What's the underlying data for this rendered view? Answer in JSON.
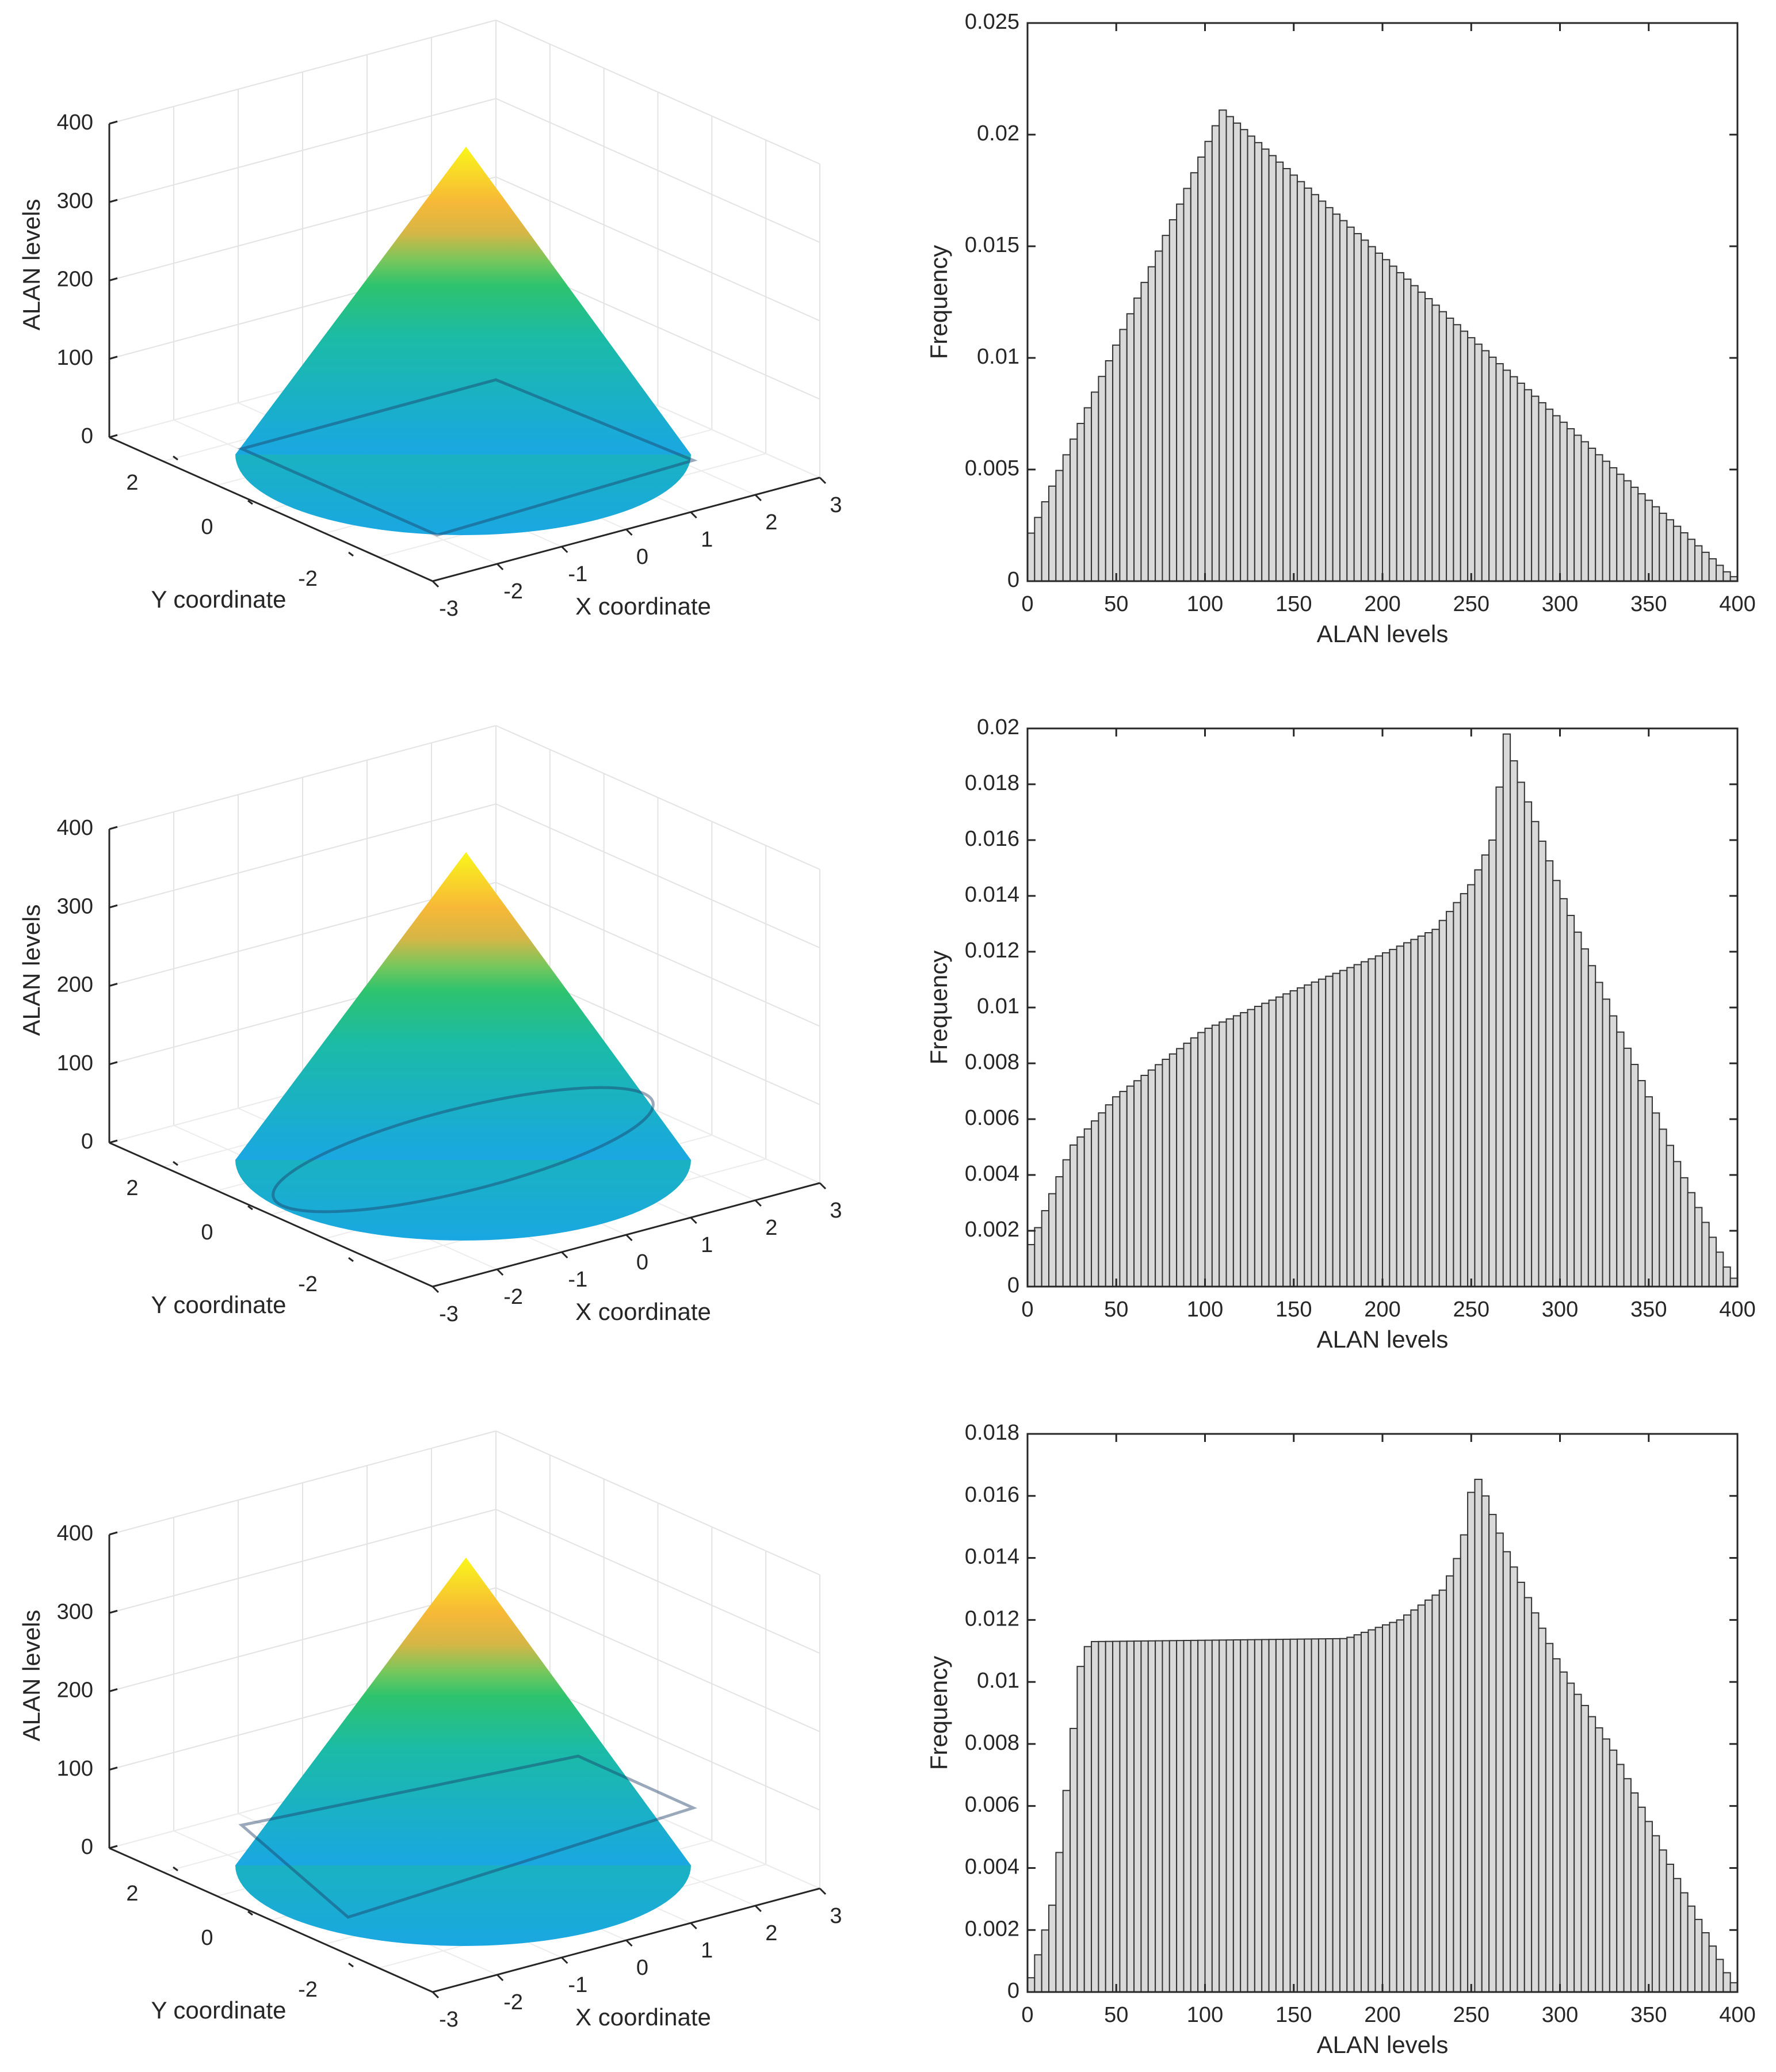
{
  "figure": {
    "rows": 3
  },
  "chart_data": [
    {
      "type": "surface3d",
      "title": "",
      "xlabel": "X coordinate",
      "ylabel": "Y coordinate",
      "zlabel": "ALAN levels",
      "xlim": [
        -3,
        3
      ],
      "ylim": [
        -3,
        3
      ],
      "zlim": [
        0,
        400
      ],
      "xticks": [
        "-3",
        "-2",
        "-1",
        "0",
        "1",
        "2",
        "3"
      ],
      "yticks": [
        "-2",
        "0",
        "2"
      ],
      "zticks": [
        "0",
        "100",
        "200",
        "300",
        "400"
      ],
      "surface": "cone",
      "apex": 400,
      "base_radius": 3,
      "colormap": "parula",
      "region": "square"
    },
    {
      "type": "bar",
      "title": "",
      "xlabel": "ALAN levels",
      "ylabel": "Frequency",
      "xlim": [
        0,
        400
      ],
      "ylim": [
        0,
        0.025
      ],
      "bin_width": 4,
      "xticks": [
        "0",
        "50",
        "100",
        "150",
        "200",
        "250",
        "300",
        "350",
        "400"
      ],
      "yticks": [
        "0",
        "0.005",
        "0.01",
        "0.015",
        "0.02",
        "0.025"
      ],
      "knots": [
        [
          0,
          0.0018
        ],
        [
          110,
          0.0211
        ],
        [
          397,
          0.0002
        ],
        [
          400,
          0.0002
        ]
      ]
    },
    {
      "type": "surface3d",
      "title": "",
      "xlabel": "X coordinate",
      "ylabel": "Y coordinate",
      "zlabel": "ALAN levels",
      "xlim": [
        -3,
        3
      ],
      "ylim": [
        -3,
        3
      ],
      "zlim": [
        0,
        400
      ],
      "xticks": [
        "-3",
        "-2",
        "-1",
        "0",
        "1",
        "2",
        "3"
      ],
      "yticks": [
        "-2",
        "0",
        "2"
      ],
      "zticks": [
        "0",
        "100",
        "200",
        "300",
        "400"
      ],
      "surface": "cone",
      "apex": 400,
      "base_radius": 3,
      "colormap": "parula",
      "region": "ellipse"
    },
    {
      "type": "bar",
      "title": "",
      "xlabel": "ALAN levels",
      "ylabel": "Frequency",
      "xlim": [
        0,
        400
      ],
      "ylim": [
        0,
        0.02
      ],
      "bin_width": 4,
      "xticks": [
        "0",
        "50",
        "100",
        "150",
        "200",
        "250",
        "300",
        "350",
        "400"
      ],
      "yticks": [
        "0",
        "0.002",
        "0.004",
        "0.006",
        "0.008",
        "0.01",
        "0.012",
        "0.014",
        "0.016",
        "0.018",
        "0.02"
      ],
      "knots": [
        [
          0,
          0.0012
        ],
        [
          25,
          0.005
        ],
        [
          50,
          0.0068
        ],
        [
          100,
          0.0092
        ],
        [
          150,
          0.0106
        ],
        [
          200,
          0.0119
        ],
        [
          230,
          0.0128
        ],
        [
          250,
          0.0144
        ],
        [
          262,
          0.016
        ],
        [
          270,
          0.0198
        ],
        [
          275,
          0.0186
        ],
        [
          300,
          0.0142
        ],
        [
          330,
          0.0097
        ],
        [
          370,
          0.0039
        ],
        [
          397,
          0.0003
        ],
        [
          400,
          0.0003
        ]
      ]
    },
    {
      "type": "surface3d",
      "title": "",
      "xlabel": "X coordinate",
      "ylabel": "Y coordinate",
      "zlabel": "ALAN levels",
      "xlim": [
        -3,
        3
      ],
      "ylim": [
        -3,
        3
      ],
      "zlim": [
        0,
        400
      ],
      "xticks": [
        "-3",
        "-2",
        "-1",
        "0",
        "1",
        "2",
        "3"
      ],
      "yticks": [
        "-2",
        "0",
        "2"
      ],
      "zticks": [
        "0",
        "100",
        "200",
        "300",
        "400"
      ],
      "surface": "cone",
      "apex": 400,
      "base_radius": 3,
      "colormap": "parula",
      "region": "rectangle"
    },
    {
      "type": "bar",
      "title": "",
      "xlabel": "ALAN levels",
      "ylabel": "Frequency",
      "xlim": [
        0,
        400
      ],
      "ylim": [
        0,
        0.018
      ],
      "bin_width": 4,
      "xticks": [
        "0",
        "50",
        "100",
        "150",
        "200",
        "250",
        "300",
        "350",
        "400"
      ],
      "yticks": [
        "0",
        "0.002",
        "0.004",
        "0.006",
        "0.008",
        "0.01",
        "0.012",
        "0.014",
        "0.016",
        "0.018"
      ],
      "knots": [
        [
          0,
          0.0001
        ],
        [
          5,
          0.001
        ],
        [
          15,
          0.003
        ],
        [
          25,
          0.008
        ],
        [
          30,
          0.0105
        ],
        [
          35,
          0.0113
        ],
        [
          180,
          0.0114
        ],
        [
          210,
          0.012
        ],
        [
          235,
          0.013
        ],
        [
          245,
          0.0144
        ],
        [
          252,
          0.0168
        ],
        [
          258,
          0.016
        ],
        [
          270,
          0.0142
        ],
        [
          300,
          0.0105
        ],
        [
          330,
          0.0078
        ],
        [
          370,
          0.0032
        ],
        [
          397,
          0.0003
        ],
        [
          400,
          0.0003
        ]
      ]
    }
  ]
}
